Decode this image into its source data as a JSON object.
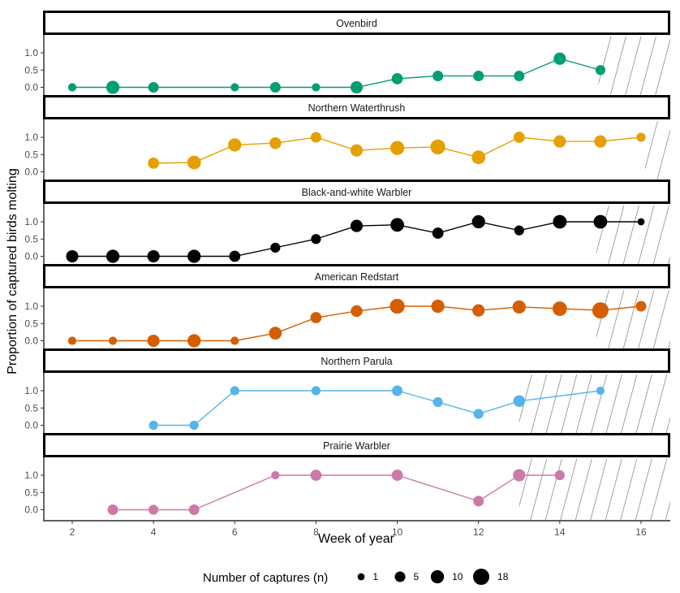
{
  "chart_data": {
    "type": "line",
    "xlabel": "Week of year",
    "ylabel": "Proportion of captured birds molting",
    "xlim": [
      1.3,
      16.7
    ],
    "ylim": [
      -0.2,
      1.25
    ],
    "x_ticks": [
      "2",
      "4",
      "6",
      "8",
      "10",
      "12",
      "14",
      "16"
    ],
    "y_ticks": [
      "0.0",
      "0.5",
      "1.0"
    ],
    "grid": false,
    "legend": {
      "title": "Number of captures (n)",
      "placement": "bottom",
      "entries": [
        {
          "label": "1",
          "n": 1
        },
        {
          "label": "5",
          "n": 5
        },
        {
          "label": "10",
          "n": 10
        },
        {
          "label": "18",
          "n": 18
        }
      ]
    },
    "hatch_color": "#999999",
    "series": [
      {
        "name": "Ovenbird",
        "color": "#009E73",
        "hatch_from_week": 14.95,
        "points": [
          {
            "week": 2,
            "value": 0,
            "n": 2
          },
          {
            "week": 3,
            "value": 0,
            "n": 10
          },
          {
            "week": 4,
            "value": 0,
            "n": 5
          },
          {
            "week": 6,
            "value": 0,
            "n": 2
          },
          {
            "week": 7,
            "value": 0,
            "n": 5
          },
          {
            "week": 8,
            "value": 0,
            "n": 2
          },
          {
            "week": 9,
            "value": 0,
            "n": 8
          },
          {
            "week": 10,
            "value": 0.25,
            "n": 6
          },
          {
            "week": 11,
            "value": 0.33,
            "n": 5
          },
          {
            "week": 12,
            "value": 0.33,
            "n": 5
          },
          {
            "week": 13,
            "value": 0.33,
            "n": 5
          },
          {
            "week": 14,
            "value": 0.83,
            "n": 8
          },
          {
            "week": 15,
            "value": 0.5,
            "n": 4
          }
        ]
      },
      {
        "name": "Northern Waterthrush",
        "color": "#E69F00",
        "hatch_from_week": 16.1,
        "points": [
          {
            "week": 4,
            "value": 0.25,
            "n": 6
          },
          {
            "week": 5,
            "value": 0.27,
            "n": 11
          },
          {
            "week": 6,
            "value": 0.78,
            "n": 10
          },
          {
            "week": 7,
            "value": 0.83,
            "n": 7
          },
          {
            "week": 8,
            "value": 1.0,
            "n": 5
          },
          {
            "week": 9,
            "value": 0.62,
            "n": 8
          },
          {
            "week": 10,
            "value": 0.69,
            "n": 12
          },
          {
            "week": 11,
            "value": 0.72,
            "n": 14
          },
          {
            "week": 12,
            "value": 0.42,
            "n": 11
          },
          {
            "week": 13,
            "value": 1.0,
            "n": 6
          },
          {
            "week": 14,
            "value": 0.88,
            "n": 8
          },
          {
            "week": 15,
            "value": 0.88,
            "n": 8
          },
          {
            "week": 16,
            "value": 1.0,
            "n": 3
          }
        ]
      },
      {
        "name": "Black-and-white Warbler",
        "color": "#000000",
        "hatch_from_week": 14.9,
        "points": [
          {
            "week": 2,
            "value": 0,
            "n": 8
          },
          {
            "week": 3,
            "value": 0,
            "n": 10
          },
          {
            "week": 4,
            "value": 0,
            "n": 8
          },
          {
            "week": 5,
            "value": 0,
            "n": 10
          },
          {
            "week": 6,
            "value": 0,
            "n": 6
          },
          {
            "week": 7,
            "value": 0.25,
            "n": 4
          },
          {
            "week": 8,
            "value": 0.5,
            "n": 4
          },
          {
            "week": 9,
            "value": 0.88,
            "n": 8
          },
          {
            "week": 10,
            "value": 0.91,
            "n": 11
          },
          {
            "week": 11,
            "value": 0.67,
            "n": 6
          },
          {
            "week": 12,
            "value": 1.0,
            "n": 10
          },
          {
            "week": 13,
            "value": 0.75,
            "n": 4
          },
          {
            "week": 14,
            "value": 1.0,
            "n": 11
          },
          {
            "week": 15,
            "value": 1.0,
            "n": 11
          },
          {
            "week": 16,
            "value": 1.0,
            "n": 1
          }
        ]
      },
      {
        "name": "American Redstart",
        "color": "#D55E00",
        "hatch_from_week": 14.9,
        "points": [
          {
            "week": 2,
            "value": 0,
            "n": 2
          },
          {
            "week": 3,
            "value": 0,
            "n": 2
          },
          {
            "week": 4,
            "value": 0,
            "n": 8
          },
          {
            "week": 5,
            "value": 0,
            "n": 10
          },
          {
            "week": 6,
            "value": 0,
            "n": 2
          },
          {
            "week": 7,
            "value": 0.22,
            "n": 9
          },
          {
            "week": 8,
            "value": 0.67,
            "n": 6
          },
          {
            "week": 9,
            "value": 0.86,
            "n": 7
          },
          {
            "week": 10,
            "value": 1.0,
            "n": 14
          },
          {
            "week": 11,
            "value": 1.0,
            "n": 10
          },
          {
            "week": 12,
            "value": 0.88,
            "n": 8
          },
          {
            "week": 13,
            "value": 0.98,
            "n": 10
          },
          {
            "week": 14,
            "value": 0.93,
            "n": 13
          },
          {
            "week": 15,
            "value": 0.88,
            "n": 18
          },
          {
            "week": 16,
            "value": 1.0,
            "n": 5
          }
        ]
      },
      {
        "name": "Northern Parula",
        "color": "#56B4E9",
        "hatch_from_week": 13.0,
        "points": [
          {
            "week": 4,
            "value": 0,
            "n": 3
          },
          {
            "week": 5,
            "value": 0,
            "n": 3
          },
          {
            "week": 6,
            "value": 1.0,
            "n": 3
          },
          {
            "week": 8,
            "value": 1.0,
            "n": 3
          },
          {
            "week": 10,
            "value": 1.0,
            "n": 5
          },
          {
            "week": 11,
            "value": 0.67,
            "n": 4
          },
          {
            "week": 12,
            "value": 0.33,
            "n": 4
          },
          {
            "week": 13,
            "value": 0.7,
            "n": 7
          },
          {
            "week": 15,
            "value": 1.0,
            "n": 2
          }
        ]
      },
      {
        "name": "Prairie Warbler",
        "color": "#CC79A7",
        "hatch_from_week": 13.0,
        "points": [
          {
            "week": 3,
            "value": 0,
            "n": 5
          },
          {
            "week": 4,
            "value": 0,
            "n": 4
          },
          {
            "week": 5,
            "value": 0,
            "n": 5
          },
          {
            "week": 7,
            "value": 1.0,
            "n": 2
          },
          {
            "week": 8,
            "value": 1.0,
            "n": 6
          },
          {
            "week": 10,
            "value": 1.0,
            "n": 6
          },
          {
            "week": 12,
            "value": 0.25,
            "n": 5
          },
          {
            "week": 13,
            "value": 1.0,
            "n": 8
          },
          {
            "week": 14,
            "value": 1.0,
            "n": 4
          }
        ]
      }
    ]
  }
}
